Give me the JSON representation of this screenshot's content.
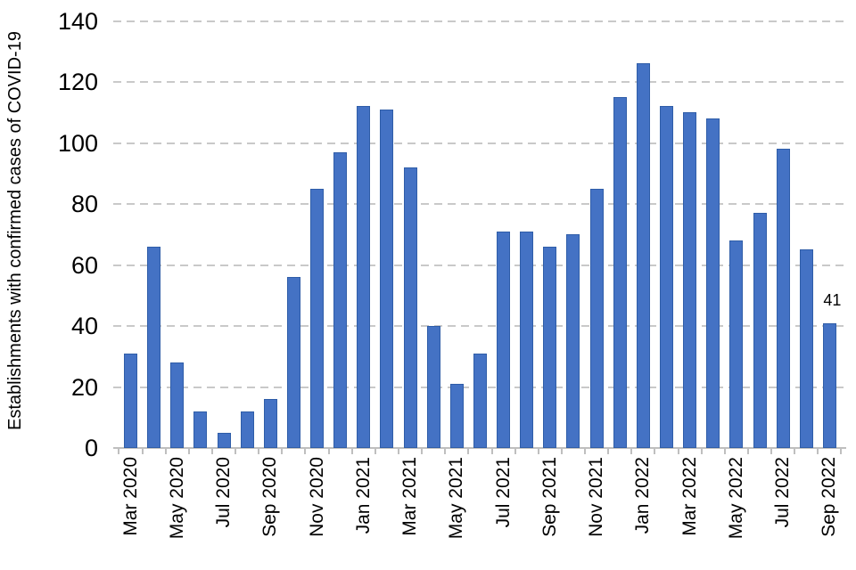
{
  "chart_data": {
    "type": "bar",
    "title": "",
    "xlabel": "",
    "ylabel": "Establishments with confirmed cases of COVID-19",
    "ylim": [
      0,
      140
    ],
    "yticks": [
      0,
      20,
      40,
      60,
      80,
      100,
      120,
      140
    ],
    "grid": "horizontal-dashed",
    "legend_position": "none",
    "categories": [
      "Mar 2020",
      "Apr 2020",
      "May 2020",
      "Jun 2020",
      "Jul 2020",
      "Aug 2020",
      "Sep 2020",
      "Oct 2020",
      "Nov 2020",
      "Dec 2020",
      "Jan 2021",
      "Feb 2021",
      "Mar 2021",
      "Apr 2021",
      "May 2021",
      "Jun 2021",
      "Jul 2021",
      "Aug 2021",
      "Sep 2021",
      "Oct 2021",
      "Nov 2021",
      "Dec 2021",
      "Jan 2022",
      "Feb 2022",
      "Mar 2022",
      "Apr 2022",
      "May 2022",
      "Jun 2022",
      "Jul 2022",
      "Aug 2022",
      "Sep 2022"
    ],
    "values": [
      31,
      66,
      28,
      12,
      5,
      12,
      16,
      56,
      85,
      97,
      112,
      111,
      92,
      40,
      21,
      31,
      71,
      71,
      66,
      70,
      85,
      115,
      126,
      112,
      110,
      108,
      68,
      77,
      98,
      65,
      41
    ],
    "xtick_labels": [
      "Mar 2020",
      "May 2020",
      "Jul 2020",
      "Sep 2020",
      "Nov 2020",
      "Jan 2021",
      "Mar 2021",
      "May 2021",
      "Jul 2021",
      "Sep 2021",
      "Nov 2021",
      "Jan 2022",
      "Mar 2022",
      "May 2022",
      "Jul 2022",
      "Sep 2022"
    ],
    "annotations": [
      {
        "category": "Sep 2022",
        "index": 30,
        "text": "41"
      }
    ],
    "colors": {
      "bar_fill": "#4472C4",
      "bar_border": "#2F5DA8",
      "gridline": "#C9C9C9",
      "axis_line": "#BFBFBF",
      "text": "#000000"
    }
  }
}
